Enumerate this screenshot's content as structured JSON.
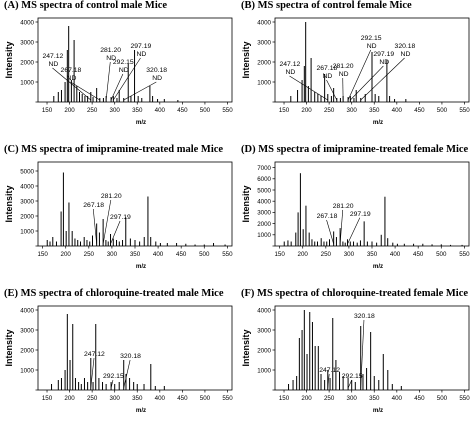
{
  "chart_data": [
    {
      "type": "bar",
      "title": "(A) MS spectra of control male Mice",
      "xlabel": "m/z",
      "ylabel": "Intensity",
      "xlim": [
        130,
        560
      ],
      "ylim": [
        0,
        4200
      ],
      "yticks": [
        0,
        1000,
        2000,
        3000,
        4000
      ],
      "yticklabels": [
        "",
        "1000",
        "2000",
        "3000",
        "4000"
      ],
      "xticks": [
        150,
        200,
        250,
        300,
        350,
        400,
        450,
        500,
        550
      ],
      "peaks": [
        [
          165,
          300
        ],
        [
          175,
          500
        ],
        [
          182,
          600
        ],
        [
          190,
          1000
        ],
        [
          195,
          2600
        ],
        [
          198,
          3800
        ],
        [
          204,
          1100
        ],
        [
          210,
          3100
        ],
        [
          216,
          800
        ],
        [
          222,
          500
        ],
        [
          228,
          400
        ],
        [
          234,
          300
        ],
        [
          240,
          300
        ],
        [
          247,
          500
        ],
        [
          252,
          250
        ],
        [
          260,
          700
        ],
        [
          267,
          200
        ],
        [
          275,
          200
        ],
        [
          281,
          300
        ],
        [
          292,
          250
        ],
        [
          297,
          300
        ],
        [
          305,
          200
        ],
        [
          310,
          600
        ],
        [
          320,
          200
        ],
        [
          330,
          1900
        ],
        [
          336,
          300
        ],
        [
          344,
          2600
        ],
        [
          352,
          300
        ],
        [
          360,
          200
        ],
        [
          378,
          800
        ],
        [
          384,
          300
        ],
        [
          395,
          150
        ],
        [
          410,
          150
        ],
        [
          440,
          100
        ]
      ],
      "annotations": [
        {
          "text": "247.12\nND",
          "x": 247,
          "label_at": [
            140,
            2200
          ]
        },
        {
          "text": "267.18\nND",
          "x": 267,
          "label_at": [
            180,
            1500
          ]
        },
        {
          "text": "281.20\nND",
          "x": 281,
          "label_at": [
            268,
            2500
          ]
        },
        {
          "text": "292.15\nND",
          "x": 292,
          "label_at": [
            296,
            1900
          ]
        },
        {
          "text": "297.19\nND",
          "x": 297,
          "label_at": [
            335,
            2700
          ]
        },
        {
          "text": "320.18\nND",
          "x": 320,
          "label_at": [
            370,
            1500
          ]
        }
      ]
    },
    {
      "type": "bar",
      "title": "(B) MS spectra of control female Mice",
      "xlabel": "m/z",
      "ylabel": "Intensity",
      "xlim": [
        130,
        560
      ],
      "ylim": [
        0,
        4200
      ],
      "yticks": [
        0,
        1000,
        2000,
        3000,
        4000
      ],
      "yticklabels": [
        "",
        "1000",
        "2000",
        "3000",
        "4000"
      ],
      "xticks": [
        150,
        200,
        250,
        300,
        350,
        400,
        450,
        500,
        550
      ],
      "peaks": [
        [
          165,
          300
        ],
        [
          180,
          600
        ],
        [
          190,
          1100
        ],
        [
          195,
          1800
        ],
        [
          198,
          4000
        ],
        [
          204,
          800
        ],
        [
          210,
          2200
        ],
        [
          218,
          500
        ],
        [
          225,
          400
        ],
        [
          232,
          300
        ],
        [
          240,
          1400
        ],
        [
          247,
          400
        ],
        [
          255,
          300
        ],
        [
          260,
          700
        ],
        [
          267,
          200
        ],
        [
          275,
          200
        ],
        [
          281,
          300
        ],
        [
          292,
          250
        ],
        [
          297,
          300
        ],
        [
          305,
          200
        ],
        [
          310,
          600
        ],
        [
          320,
          200
        ],
        [
          330,
          400
        ],
        [
          345,
          2500
        ],
        [
          352,
          400
        ],
        [
          360,
          300
        ],
        [
          378,
          2100
        ],
        [
          384,
          300
        ],
        [
          395,
          150
        ],
        [
          420,
          150
        ]
      ],
      "annotations": [
        {
          "text": "247.12\nND",
          "x": 247,
          "label_at": [
            140,
            1800
          ]
        },
        {
          "text": "267.18\nND",
          "x": 267,
          "label_at": [
            222,
            1600
          ]
        },
        {
          "text": "281.20\nND",
          "x": 281,
          "label_at": [
            258,
            1700
          ]
        },
        {
          "text": "292.15\nND",
          "x": 292,
          "label_at": [
            320,
            3100
          ]
        },
        {
          "text": "297.19\nND",
          "x": 297,
          "label_at": [
            348,
            2300
          ]
        },
        {
          "text": "320.18\nND",
          "x": 320,
          "label_at": [
            395,
            2700
          ]
        }
      ]
    },
    {
      "type": "bar",
      "title": "(C) MS spectra of imipramine-treated male Mice",
      "xlabel": "m/z",
      "ylabel": "Intensity",
      "xlim": [
        140,
        560
      ],
      "ylim": [
        0,
        5600
      ],
      "yticks": [
        0,
        1000,
        2000,
        3000,
        4000,
        5000
      ],
      "yticklabels": [
        "",
        "1000",
        "2000",
        "3000",
        "4000",
        "5000"
      ],
      "xticks": [
        150,
        200,
        250,
        300,
        350,
        400,
        450,
        500,
        550
      ],
      "peaks": [
        [
          160,
          400
        ],
        [
          166,
          300
        ],
        [
          172,
          600
        ],
        [
          180,
          300
        ],
        [
          190,
          2300
        ],
        [
          195,
          4900
        ],
        [
          201,
          1000
        ],
        [
          207,
          2900
        ],
        [
          214,
          1000
        ],
        [
          220,
          500
        ],
        [
          226,
          400
        ],
        [
          232,
          300
        ],
        [
          240,
          600
        ],
        [
          246,
          400
        ],
        [
          252,
          300
        ],
        [
          258,
          700
        ],
        [
          267,
          1500
        ],
        [
          273,
          900
        ],
        [
          281,
          1800
        ],
        [
          287,
          400
        ],
        [
          292,
          300
        ],
        [
          297,
          800
        ],
        [
          303,
          500
        ],
        [
          310,
          400
        ],
        [
          316,
          300
        ],
        [
          323,
          400
        ],
        [
          330,
          1900
        ],
        [
          340,
          500
        ],
        [
          350,
          400
        ],
        [
          360,
          300
        ],
        [
          370,
          600
        ],
        [
          378,
          3300
        ],
        [
          384,
          600
        ],
        [
          395,
          300
        ],
        [
          405,
          200
        ],
        [
          420,
          200
        ],
        [
          440,
          200
        ],
        [
          460,
          150
        ],
        [
          480,
          100
        ],
        [
          500,
          100
        ],
        [
          520,
          200
        ],
        [
          545,
          100
        ]
      ],
      "annotations": [
        {
          "text": "267.18",
          "x": 267,
          "label_at": [
            238,
            2600
          ]
        },
        {
          "text": "281.20",
          "x": 281,
          "label_at": [
            276,
            3200
          ]
        },
        {
          "text": "297.19",
          "x": 297,
          "label_at": [
            296,
            1800
          ]
        }
      ]
    },
    {
      "type": "bar",
      "title": "(D) MS spectra of imipramine-treated female Mice",
      "xlabel": "m/z",
      "ylabel": "Intensity",
      "xlim": [
        140,
        560
      ],
      "ylim": [
        0,
        7500
      ],
      "yticks": [
        0,
        1000,
        2000,
        3000,
        4000,
        5000,
        6000,
        7000
      ],
      "yticklabels": [
        "",
        "1000",
        "2000",
        "3000",
        "4000",
        "5000",
        "6000",
        "7000"
      ],
      "xticks": [
        150,
        200,
        250,
        300,
        350,
        400,
        450,
        500,
        550
      ],
      "peaks": [
        [
          160,
          400
        ],
        [
          168,
          500
        ],
        [
          175,
          400
        ],
        [
          185,
          1200
        ],
        [
          190,
          3000
        ],
        [
          195,
          6500
        ],
        [
          201,
          1500
        ],
        [
          207,
          3600
        ],
        [
          214,
          1200
        ],
        [
          220,
          600
        ],
        [
          226,
          400
        ],
        [
          232,
          400
        ],
        [
          240,
          700
        ],
        [
          246,
          400
        ],
        [
          252,
          400
        ],
        [
          258,
          600
        ],
        [
          267,
          1300
        ],
        [
          273,
          800
        ],
        [
          281,
          1600
        ],
        [
          287,
          400
        ],
        [
          292,
          300
        ],
        [
          297,
          600
        ],
        [
          303,
          400
        ],
        [
          310,
          400
        ],
        [
          318,
          300
        ],
        [
          325,
          500
        ],
        [
          333,
          2200
        ],
        [
          340,
          400
        ],
        [
          350,
          400
        ],
        [
          360,
          300
        ],
        [
          370,
          1000
        ],
        [
          378,
          4400
        ],
        [
          384,
          700
        ],
        [
          395,
          300
        ],
        [
          405,
          200
        ],
        [
          420,
          200
        ],
        [
          440,
          200
        ],
        [
          460,
          200
        ],
        [
          480,
          150
        ],
        [
          500,
          150
        ],
        [
          520,
          100
        ],
        [
          545,
          100
        ]
      ],
      "annotations": [
        {
          "text": "267.18",
          "x": 267,
          "label_at": [
            230,
            2500
          ]
        },
        {
          "text": "281.20",
          "x": 281,
          "label_at": [
            265,
            3400
          ]
        },
        {
          "text": "297.19",
          "x": 297,
          "label_at": [
            302,
            2700
          ]
        }
      ]
    },
    {
      "type": "bar",
      "title": "(E) MS spectra of chloroquine-treated male Mice",
      "xlabel": "m/z",
      "ylabel": "Intensity",
      "xlim": [
        130,
        560
      ],
      "ylim": [
        0,
        4200
      ],
      "yticks": [
        0,
        1000,
        2000,
        3000,
        4000
      ],
      "yticklabels": [
        "",
        "1000",
        "2000",
        "3000",
        "4000"
      ],
      "xticks": [
        150,
        200,
        250,
        300,
        350,
        400,
        450,
        500,
        550
      ],
      "peaks": [
        [
          160,
          300
        ],
        [
          175,
          500
        ],
        [
          182,
          600
        ],
        [
          190,
          1000
        ],
        [
          195,
          3800
        ],
        [
          201,
          1500
        ],
        [
          207,
          3300
        ],
        [
          213,
          600
        ],
        [
          220,
          400
        ],
        [
          226,
          300
        ],
        [
          233,
          600
        ],
        [
          240,
          400
        ],
        [
          247,
          1600
        ],
        [
          252,
          400
        ],
        [
          258,
          3300
        ],
        [
          265,
          600
        ],
        [
          273,
          400
        ],
        [
          281,
          300
        ],
        [
          292,
          400
        ],
        [
          300,
          300
        ],
        [
          310,
          400
        ],
        [
          320,
          1500
        ],
        [
          325,
          800
        ],
        [
          333,
          600
        ],
        [
          342,
          400
        ],
        [
          350,
          300
        ],
        [
          365,
          300
        ],
        [
          380,
          1300
        ],
        [
          390,
          200
        ],
        [
          410,
          200
        ]
      ],
      "annotations": [
        {
          "text": "247.12",
          "x": 247,
          "label_at": [
            232,
            1700
          ]
        },
        {
          "text": "292.15",
          "x": 292,
          "label_at": [
            274,
            600
          ]
        },
        {
          "text": "320.18",
          "x": 320,
          "label_at": [
            312,
            1600
          ]
        }
      ]
    },
    {
      "type": "bar",
      "title": "(F) MS spectra of chloroquine-treated female Mice",
      "xlabel": "m/z",
      "ylabel": "Intensity",
      "xlim": [
        130,
        560
      ],
      "ylim": [
        0,
        4200
      ],
      "yticks": [
        0,
        1000,
        2000,
        3000,
        4000
      ],
      "yticklabels": [
        "",
        "1000",
        "2000",
        "3000",
        "4000"
      ],
      "xticks": [
        150,
        200,
        250,
        300,
        350,
        400,
        450,
        500,
        550
      ],
      "peaks": [
        [
          160,
          300
        ],
        [
          170,
          500
        ],
        [
          178,
          700
        ],
        [
          184,
          2600
        ],
        [
          190,
          3000
        ],
        [
          195,
          4000
        ],
        [
          201,
          1800
        ],
        [
          207,
          3900
        ],
        [
          213,
          3400
        ],
        [
          219,
          2200
        ],
        [
          226,
          2200
        ],
        [
          232,
          800
        ],
        [
          240,
          500
        ],
        [
          247,
          1000
        ],
        [
          252,
          600
        ],
        [
          258,
          3600
        ],
        [
          265,
          1500
        ],
        [
          273,
          900
        ],
        [
          281,
          700
        ],
        [
          292,
          600
        ],
        [
          300,
          500
        ],
        [
          308,
          400
        ],
        [
          320,
          3200
        ],
        [
          325,
          800
        ],
        [
          333,
          1100
        ],
        [
          342,
          2900
        ],
        [
          350,
          700
        ],
        [
          360,
          500
        ],
        [
          370,
          1800
        ],
        [
          380,
          1000
        ],
        [
          390,
          300
        ],
        [
          410,
          200
        ]
      ],
      "annotations": [
        {
          "text": "247.12",
          "x": 247,
          "label_at": [
            228,
            900
          ]
        },
        {
          "text": "292.15",
          "x": 292,
          "label_at": [
            278,
            600
          ]
        },
        {
          "text": "320.18",
          "x": 320,
          "label_at": [
            305,
            3600
          ]
        }
      ]
    }
  ]
}
